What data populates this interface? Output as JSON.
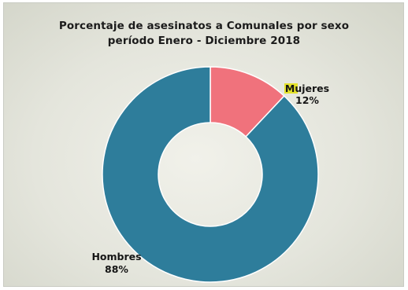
{
  "chart_data": {
    "type": "pie",
    "title": "Porcentaje de asesinatos a Comunales por sexo",
    "subtitle": "período Enero - Diciembre 2018",
    "slices": [
      {
        "label": "Mujeres",
        "value": 12,
        "value_label": "12%",
        "color": "#f0727c"
      },
      {
        "label": "Hombres",
        "value": 88,
        "value_label": "88%",
        "color": "#2e7d9b"
      }
    ],
    "donut": true,
    "highlight_color": "#e4e22a"
  }
}
